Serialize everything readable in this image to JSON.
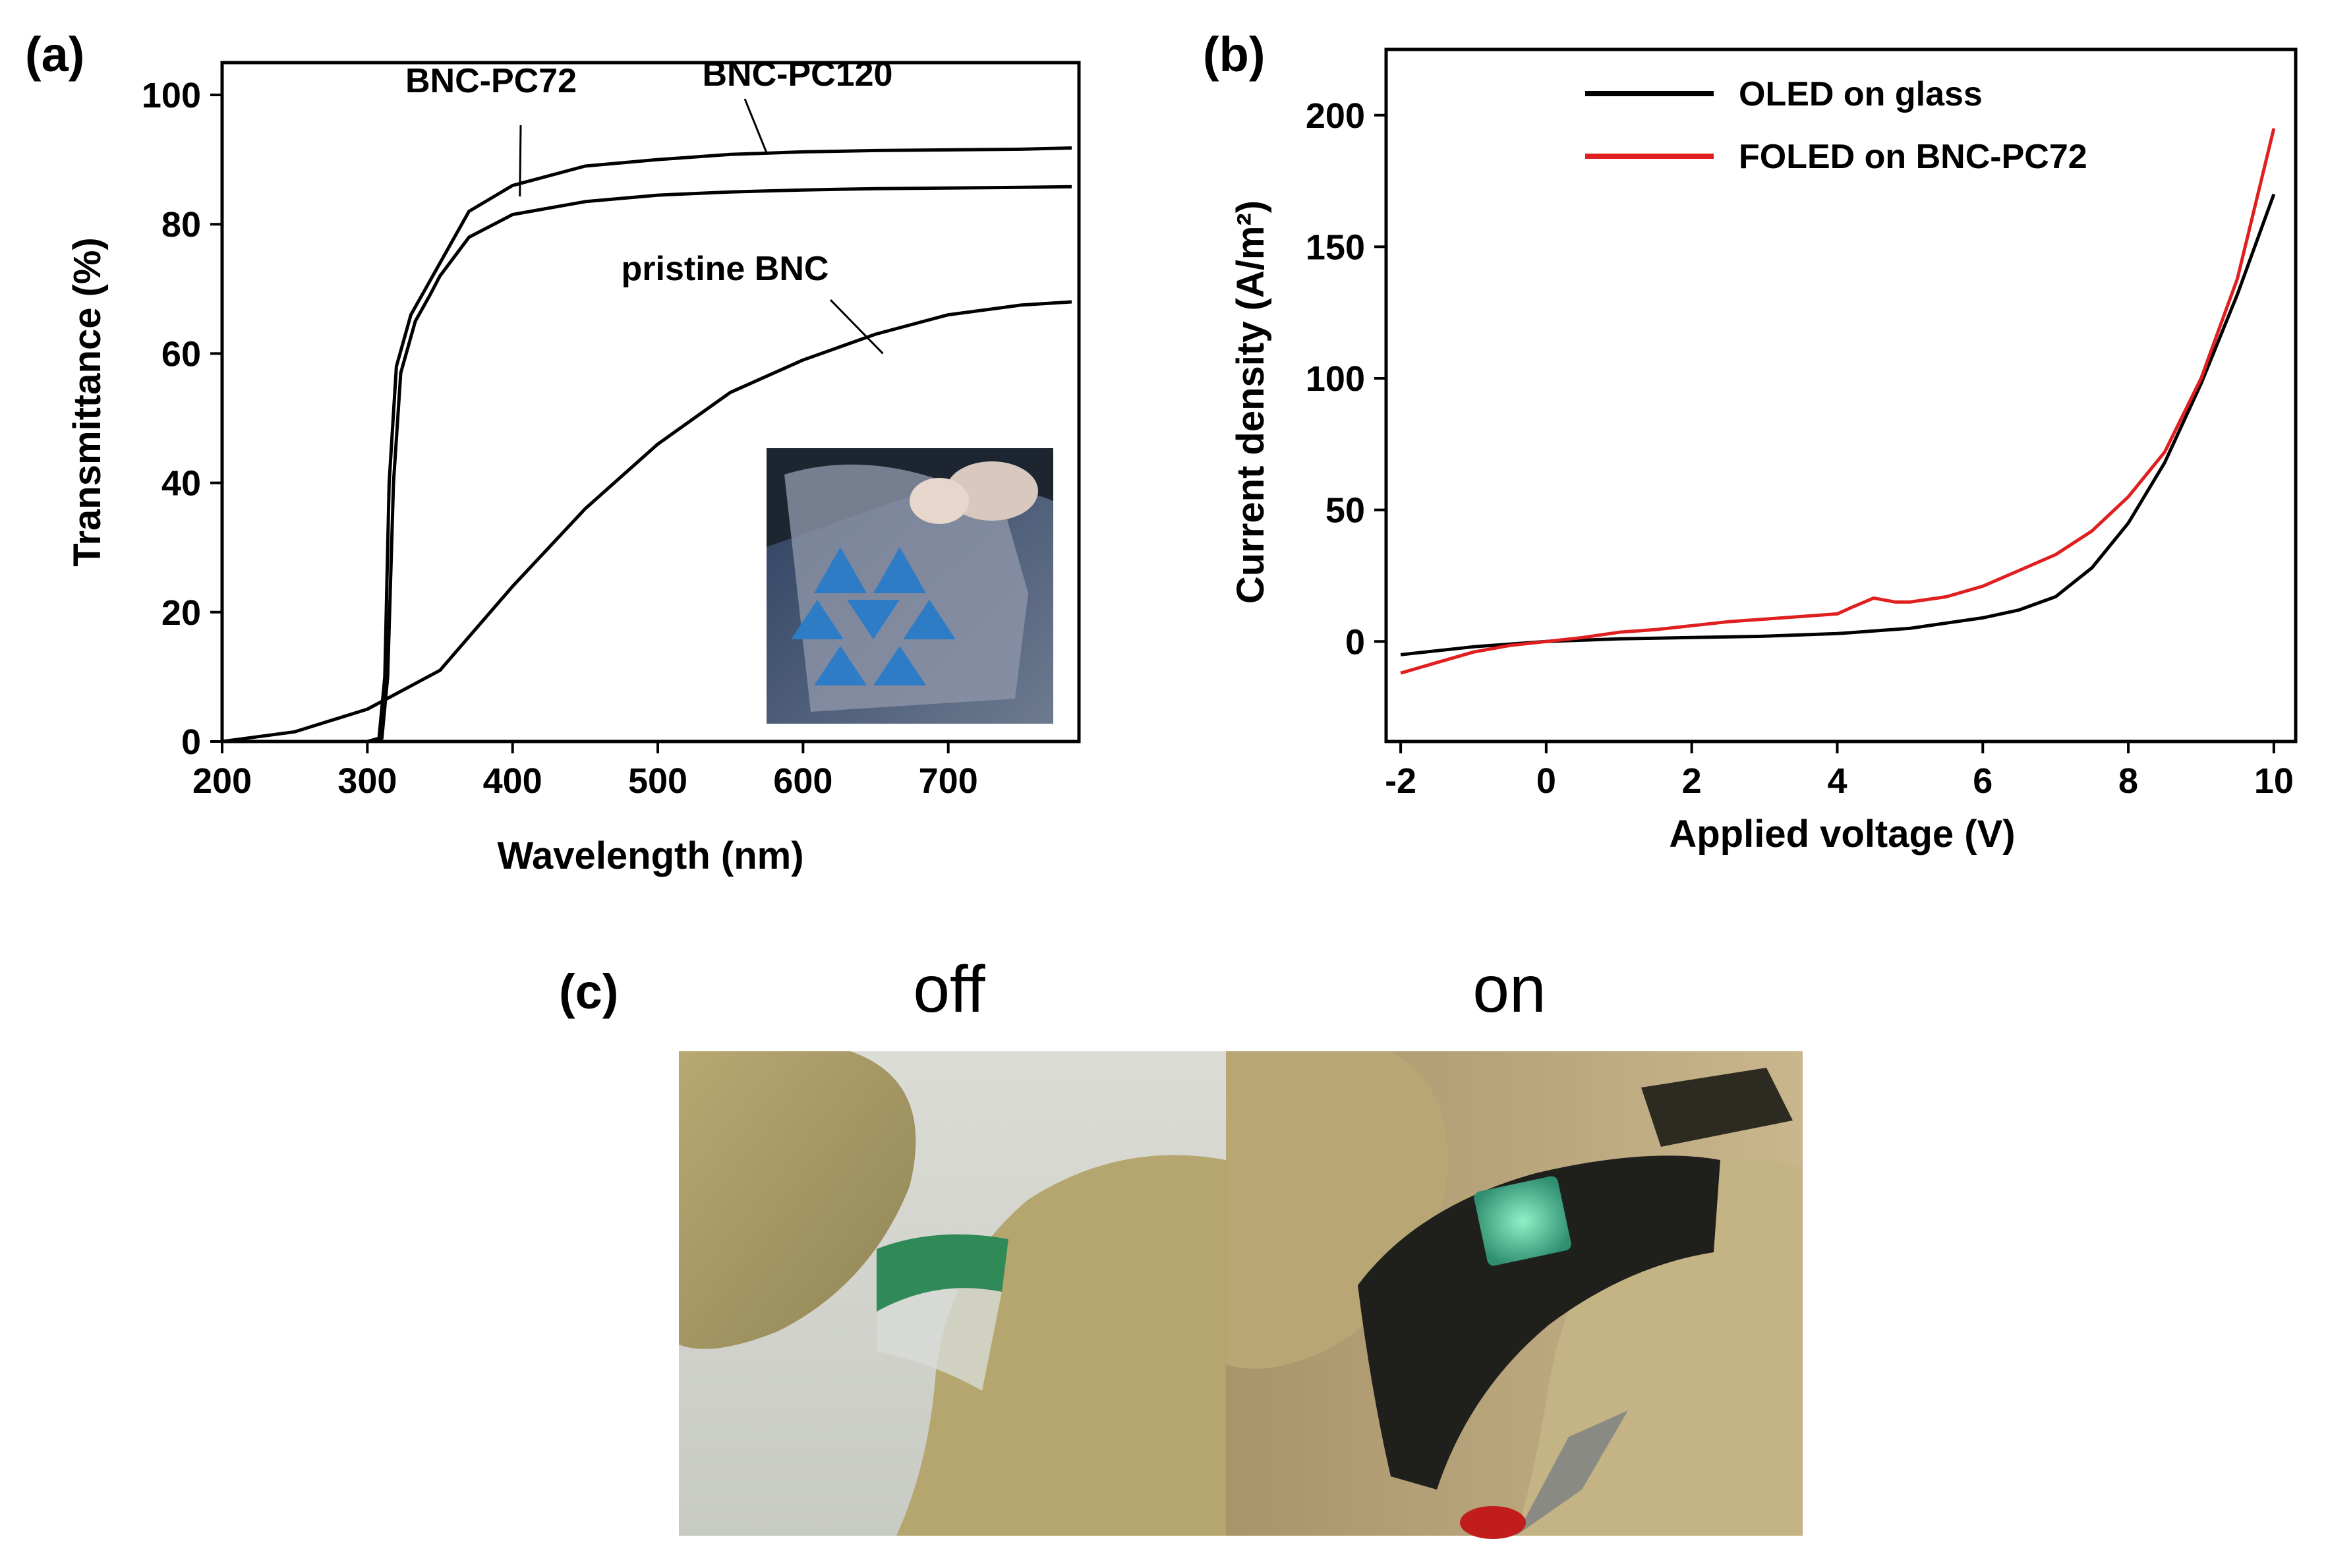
{
  "panels": {
    "a": "(a)",
    "b": "(b)",
    "c": "(c)"
  },
  "colors": {
    "black": "#000000",
    "red": "#e02020"
  },
  "chart_data": [
    {
      "id": "a",
      "type": "line",
      "xlabel": "Wavelength (nm)",
      "ylabel": "Transmittance (%)",
      "xlim": [
        200,
        790
      ],
      "ylim": [
        0,
        105
      ],
      "xticks": [
        200,
        300,
        400,
        500,
        600,
        700
      ],
      "yticks": [
        0,
        20,
        40,
        60,
        80,
        100
      ],
      "grid": false,
      "series": [
        {
          "name": "BNC-PC120",
          "color": "#000000",
          "x": [
            200,
            300,
            308,
            312,
            315,
            320,
            330,
            340,
            350,
            370,
            400,
            450,
            500,
            550,
            600,
            650,
            700,
            750,
            785
          ],
          "y": [
            0,
            0,
            0.5,
            10,
            40,
            58,
            66,
            70,
            74,
            82,
            86,
            89,
            90,
            90.8,
            91.2,
            91.4,
            91.5,
            91.6,
            91.8
          ]
        },
        {
          "name": "BNC-PC72",
          "color": "#000000",
          "x": [
            200,
            300,
            310,
            314,
            318,
            323,
            333,
            343,
            350,
            370,
            400,
            450,
            500,
            550,
            600,
            650,
            700,
            750,
            785
          ],
          "y": [
            0,
            0,
            0.5,
            10,
            40,
            57,
            65,
            69,
            72,
            78,
            81.5,
            83.5,
            84.5,
            85,
            85.3,
            85.5,
            85.6,
            85.7,
            85.8
          ]
        },
        {
          "name": "pristine BNC",
          "color": "#000000",
          "x": [
            200,
            250,
            300,
            350,
            400,
            450,
            500,
            550,
            600,
            650,
            700,
            750,
            785
          ],
          "y": [
            0,
            1.5,
            5,
            11,
            24,
            36,
            46,
            54,
            59,
            63,
            66,
            67.5,
            68
          ]
        }
      ],
      "annotations": [
        {
          "text": "BNC-PC72",
          "x": 405,
          "y": 84.3
        },
        {
          "text": "BNC-PC120",
          "x": 575,
          "y": 91
        },
        {
          "text": "pristine BNC",
          "x": 655,
          "y": 60
        }
      ]
    },
    {
      "id": "b",
      "type": "line",
      "xlabel": "Applied voltage (V)",
      "ylabel": "Current density (A/m²)",
      "xlim": [
        -2.2,
        10.3
      ],
      "ylim": [
        -38,
        225
      ],
      "xticks": [
        -2,
        0,
        2,
        4,
        6,
        8,
        10
      ],
      "yticks": [
        0,
        50,
        100,
        150,
        200
      ],
      "grid": false,
      "legend": "top-left",
      "series": [
        {
          "name": "OLED on glass",
          "color": "#000000",
          "x": [
            -2,
            -1.5,
            -1,
            -0.5,
            0,
            0.5,
            1,
            2,
            3,
            4,
            5,
            5.5,
            6,
            6.5,
            7,
            7.5,
            8,
            8.5,
            9,
            9.5,
            10
          ],
          "y": [
            -5,
            -3.5,
            -2,
            -1,
            0,
            0.5,
            1,
            1.5,
            2,
            3,
            5,
            7,
            9,
            12,
            17,
            28,
            45,
            68,
            98,
            132,
            170
          ]
        },
        {
          "name": "FOLED on BNC-PC72",
          "color": "#e02020",
          "x": [
            -2,
            -1.5,
            -1,
            -0.5,
            0,
            0.5,
            1,
            1.5,
            2,
            2.5,
            3,
            3.5,
            4,
            4.2,
            4.5,
            4.8,
            5,
            5.5,
            6,
            6.5,
            7,
            7.5,
            8,
            8.5,
            9,
            9.5,
            10
          ],
          "y": [
            -12,
            -8,
            -4,
            -1.5,
            0,
            1.5,
            3.5,
            4.5,
            6,
            7.5,
            8.5,
            9.5,
            10.5,
            13,
            16.5,
            15,
            15,
            17,
            21,
            27,
            33,
            42,
            55,
            72,
            100,
            138,
            195
          ]
        }
      ]
    }
  ],
  "photos": {
    "c_off": "off",
    "c_on": "on"
  }
}
